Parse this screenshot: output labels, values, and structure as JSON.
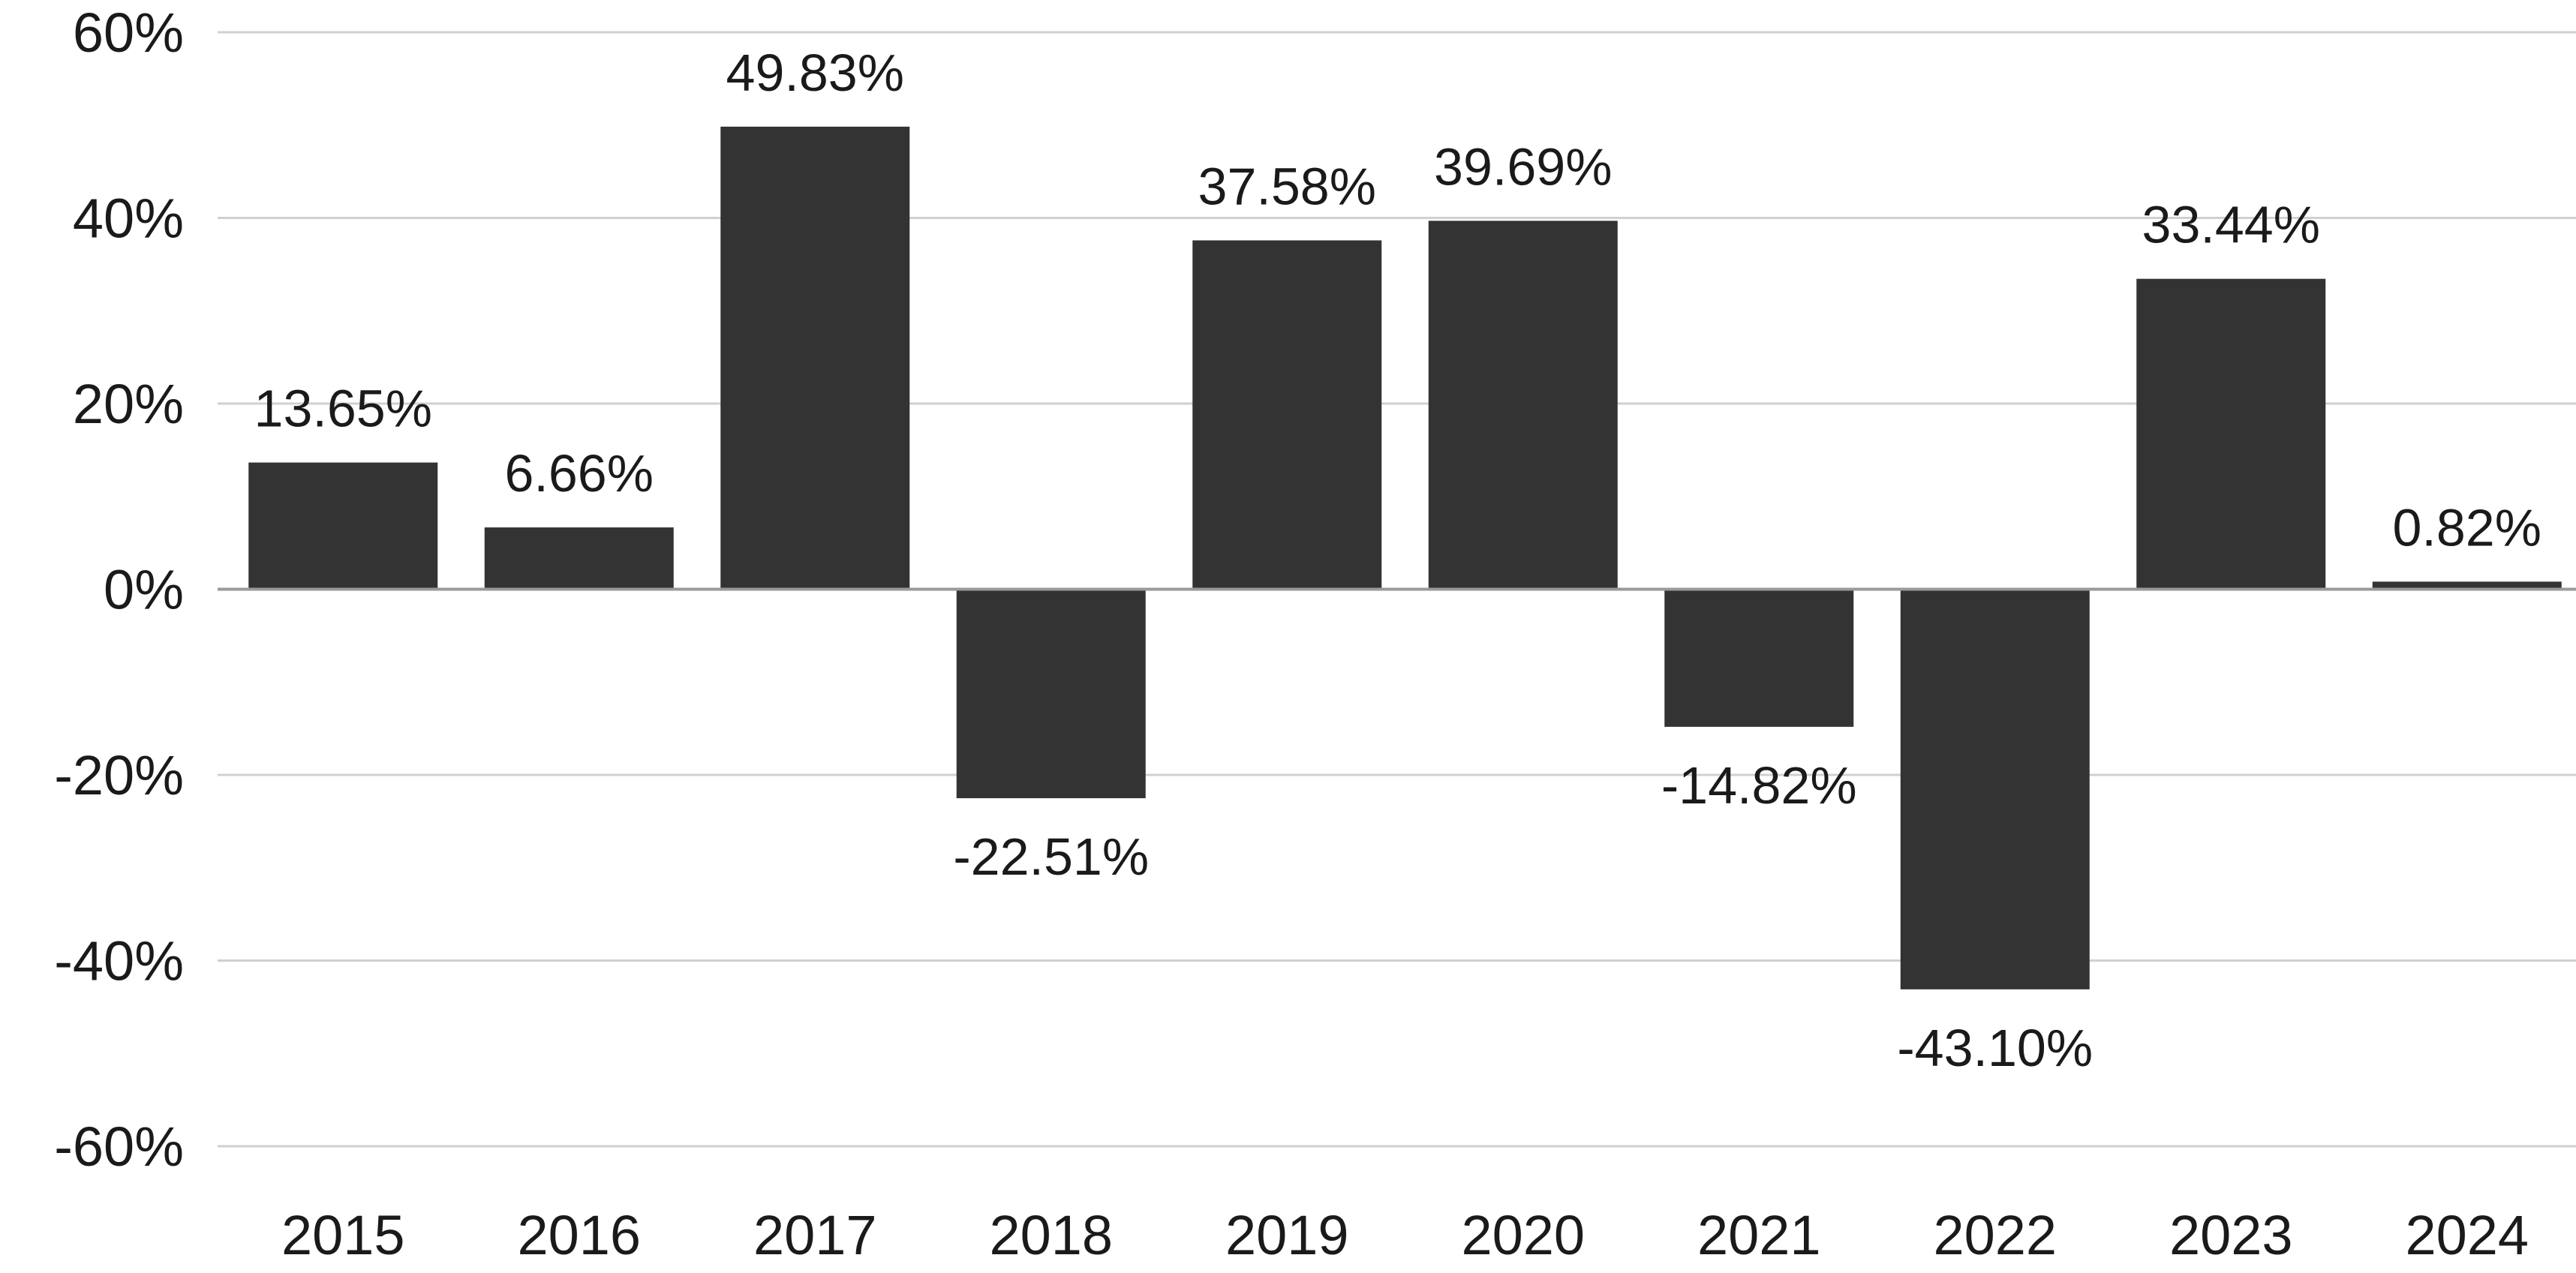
{
  "chart_data": {
    "type": "bar",
    "title": "",
    "xlabel": "",
    "ylabel": "",
    "categories": [
      "2015",
      "2016",
      "2017",
      "2018",
      "2019",
      "2020",
      "2021",
      "2022",
      "2023",
      "2024"
    ],
    "values": [
      13.65,
      6.66,
      49.83,
      -22.51,
      37.58,
      39.69,
      -14.82,
      -43.1,
      33.44,
      0.82
    ],
    "data_labels": [
      "13.65%",
      "6.66%",
      "49.83%",
      "-22.51%",
      "37.58%",
      "39.69%",
      "-14.82%",
      "-43.10%",
      "33.44%",
      "0.82%"
    ],
    "ylim": [
      -60,
      60
    ],
    "y_ticks": [
      60,
      40,
      20,
      0,
      -20,
      -40,
      -60
    ],
    "y_tick_labels": [
      "60%",
      "40%",
      "20%",
      "0%",
      "-20%",
      "-40%",
      "-60%"
    ],
    "grid": true,
    "legend": "none",
    "colors": {
      "bar": "#333333",
      "grid": "#d0d0d0",
      "zero_line": "#9a9a9a",
      "text": "#1a1a1a"
    }
  }
}
